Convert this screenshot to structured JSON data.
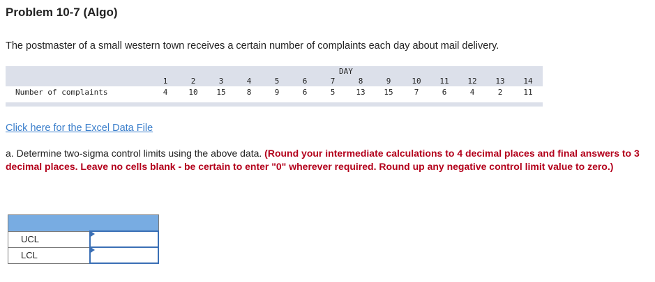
{
  "title": "Problem 10-7 (Algo)",
  "intro": "The postmaster of a small western town receives a certain number of complaints each day about mail delivery.",
  "table": {
    "header": "DAY",
    "row_label": "Number of complaints",
    "days": [
      "1",
      "2",
      "3",
      "4",
      "5",
      "6",
      "7",
      "8",
      "9",
      "10",
      "11",
      "12",
      "13",
      "14"
    ],
    "complaints": [
      "4",
      "10",
      "15",
      "8",
      "9",
      "6",
      "5",
      "13",
      "15",
      "7",
      "6",
      "4",
      "2",
      "11"
    ]
  },
  "link": "Click here for the Excel Data File",
  "question": {
    "text": "a. Determine two-sigma control limits using the above data. ",
    "instructions": "(Round your intermediate calculations to 4 decimal places and final answers to 3 decimal places. Leave no cells blank - be certain to enter \"0\" wherever required. Round up any negative control limit value to zero.)"
  },
  "answers": {
    "rows": [
      {
        "label": "UCL",
        "value": ""
      },
      {
        "label": "LCL",
        "value": ""
      }
    ]
  },
  "colors": {
    "header_band": "#dce0ea",
    "answer_header": "#78ace2",
    "link": "#3a7ecb",
    "instructions": "#b3001b"
  }
}
